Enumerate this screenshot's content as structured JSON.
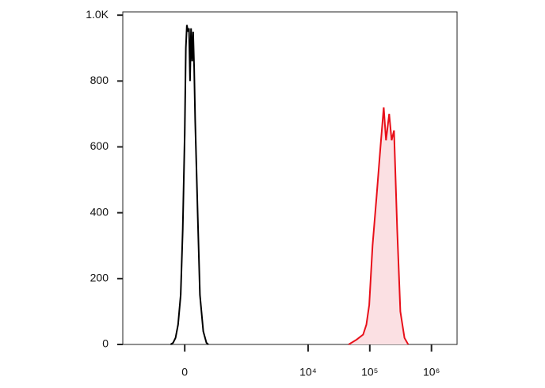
{
  "chart_data": {
    "type": "histogram-overlay",
    "xscale": "asinh",
    "xlim": [
      -1000,
      2600000
    ],
    "xticks": [
      0,
      {
        "value": 10000,
        "label": "10⁴"
      },
      {
        "value": 100000,
        "label": "10⁵"
      },
      {
        "value": 1000000,
        "label": "10⁶"
      }
    ],
    "ylim": [
      0,
      1010
    ],
    "yticks": [
      0,
      200,
      400,
      600,
      800,
      {
        "value": 1000,
        "label": "1.0K"
      }
    ],
    "series": [
      {
        "color": "#000000",
        "filled": false,
        "x": [
          -110,
          -90,
          -70,
          -50,
          -30,
          -15,
          0,
          8,
          16,
          24,
          32,
          40,
          48,
          56,
          64,
          72,
          80,
          100,
          120,
          150,
          180,
          200
        ],
        "values": [
          0,
          5,
          20,
          60,
          150,
          350,
          640,
          900,
          970,
          950,
          960,
          800,
          960,
          860,
          950,
          840,
          680,
          400,
          150,
          40,
          5,
          0
        ]
      },
      {
        "color": "#e8101a",
        "fill": "#fbe0e3",
        "filled": true,
        "x": [
          45500,
          61400,
          78000,
          88000,
          98000,
          111000,
          129000,
          149000,
          168000,
          183000,
          206000,
          226000,
          247000,
          278000,
          313000,
          365000,
          419000
        ],
        "values": [
          0,
          15,
          30,
          60,
          120,
          300,
          450,
          600,
          720,
          620,
          700,
          620,
          650,
          350,
          100,
          20,
          0
        ]
      }
    ]
  }
}
